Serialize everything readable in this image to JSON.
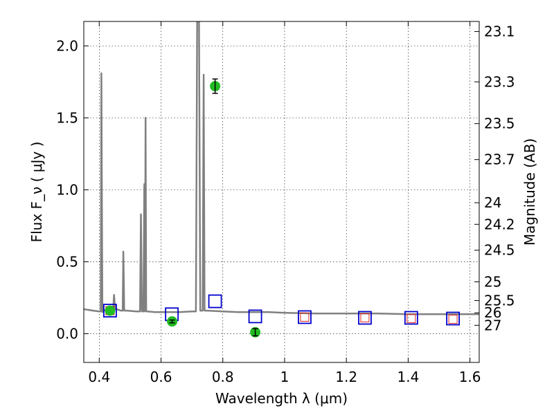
{
  "chart_data": {
    "type": "line",
    "title": "",
    "xlabel": "Wavelength  λ (μm)",
    "ylabel": "Flux  F_ν  ( μJy )",
    "y2label": "Magnitude (AB)",
    "xlim": [
      0.35,
      1.63
    ],
    "ylim": [
      -0.2,
      2.17
    ],
    "grid": true,
    "x_ticks": [
      0.4,
      0.6,
      0.8,
      1.0,
      1.2,
      1.4,
      1.6
    ],
    "x_tick_labels": [
      "0.4",
      "0.6",
      "0.8",
      "1",
      "1.2",
      "1.4",
      "1.6"
    ],
    "y_ticks": [
      0.0,
      0.5,
      1.0,
      1.5,
      2.0
    ],
    "y_tick_labels": [
      "0.0",
      "0.5",
      "1.0",
      "1.5",
      "2.0"
    ],
    "y2_tick_labels": [
      "23.1",
      "23.3",
      "23.5",
      "23.7",
      "24",
      "24.2",
      "24.5",
      "25",
      "25.5",
      "26",
      "27"
    ],
    "y2_ticks_flux": [
      2.1,
      1.75,
      1.46,
      1.21,
      0.91,
      0.76,
      0.58,
      0.36,
      0.23,
      0.145,
      0.058
    ],
    "colors": {
      "model": "#808080",
      "observed": "#22bb22",
      "model_photometry": "#0000cc",
      "filter_box_inner": "#dd2222",
      "errorbar": "#000000"
    },
    "series": [
      {
        "style": "line",
        "x": [
          0.35,
          0.38,
          0.4,
          0.405,
          0.407,
          0.41,
          0.413,
          0.43,
          0.445,
          0.448,
          0.451,
          0.455,
          0.47,
          0.476,
          0.478,
          0.481,
          0.49,
          0.52,
          0.532,
          0.535,
          0.538,
          0.543,
          0.546,
          0.548,
          0.55,
          0.552,
          0.554,
          0.556,
          0.58,
          0.62,
          0.66,
          0.7,
          0.713,
          0.717,
          0.719,
          0.723,
          0.727,
          0.735,
          0.738,
          0.741,
          0.744,
          0.75,
          0.8,
          0.85,
          0.9,
          0.95,
          1.0,
          1.1,
          1.2,
          1.3,
          1.4,
          1.5,
          1.63
        ],
        "y": [
          0.17,
          0.16,
          0.155,
          0.155,
          1.81,
          0.15,
          0.16,
          0.17,
          0.17,
          0.27,
          0.17,
          0.17,
          0.16,
          0.16,
          0.57,
          0.16,
          0.16,
          0.155,
          0.155,
          0.83,
          0.155,
          0.155,
          1.04,
          0.155,
          1.5,
          0.155,
          0.155,
          0.155,
          0.15,
          0.15,
          0.15,
          0.155,
          0.155,
          2.17,
          2.17,
          2.17,
          0.16,
          0.16,
          1.8,
          0.16,
          0.16,
          0.16,
          0.155,
          0.15,
          0.15,
          0.15,
          0.145,
          0.14,
          0.14,
          0.14,
          0.135,
          0.135,
          0.135
        ]
      },
      {
        "style": "model_photometry",
        "x": [
          0.435,
          0.635,
          0.775,
          0.905,
          1.065,
          1.26,
          1.41,
          1.545
        ],
        "y": [
          0.16,
          0.135,
          0.225,
          0.12,
          0.115,
          0.11,
          0.11,
          0.105
        ]
      },
      {
        "style": "filter_box_inner",
        "x": [
          0.435,
          1.065,
          1.26,
          1.41,
          1.545
        ],
        "y": [
          0.16,
          0.115,
          0.11,
          0.105,
          0.1
        ]
      },
      {
        "style": "observed",
        "x": [
          0.435,
          0.636,
          0.775,
          0.905
        ],
        "y": [
          0.16,
          0.085,
          1.72,
          0.01
        ],
        "yerr": [
          0.0,
          0.01,
          0.05,
          0.025
        ]
      }
    ]
  }
}
